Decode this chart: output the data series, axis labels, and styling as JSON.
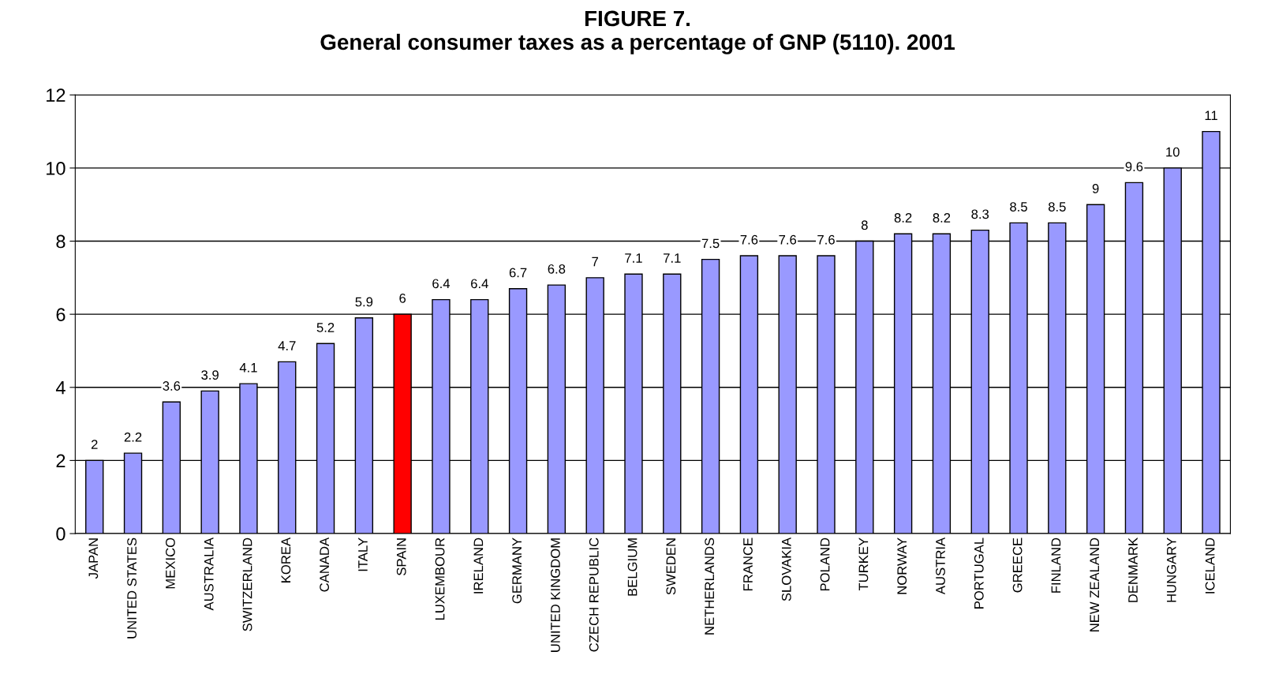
{
  "chart_data": {
    "type": "bar",
    "title": "FIGURE 7.\nGeneral consumer taxes as a percentage of GNP (5110). 2001",
    "categories": [
      "JAPAN",
      "UNITED STATES",
      "MEXICO",
      "AUSTRALIA",
      "SWITZERLAND",
      "KOREA",
      "CANADA",
      "ITALY",
      "SPAIN",
      "LUXEMBOUR",
      "IRELAND",
      "GERMANY",
      "UNITED KINGDOM",
      "CZECH REPUBLIC",
      "BELGIUM",
      "SWEDEN",
      "NETHERLANDS",
      "FRANCE",
      "SLOVAKIA",
      "POLAND",
      "TURKEY",
      "NORWAY",
      "AUSTRIA",
      "PORTUGAL",
      "GREECE",
      "FINLAND",
      "NEW ZEALAND",
      "DENMARK",
      "HUNGARY",
      "ICELAND"
    ],
    "values": [
      2,
      2.2,
      3.6,
      3.9,
      4.1,
      4.7,
      5.2,
      5.9,
      6,
      6.4,
      6.4,
      6.7,
      6.8,
      7,
      7.1,
      7.1,
      7.5,
      7.6,
      7.6,
      7.6,
      8,
      8.2,
      8.2,
      8.3,
      8.5,
      8.5,
      9,
      9.6,
      10,
      11
    ],
    "colors": [
      "#9999ff",
      "#9999ff",
      "#9999ff",
      "#9999ff",
      "#9999ff",
      "#9999ff",
      "#9999ff",
      "#9999ff",
      "#ff0000",
      "#9999ff",
      "#9999ff",
      "#9999ff",
      "#9999ff",
      "#9999ff",
      "#9999ff",
      "#9999ff",
      "#9999ff",
      "#9999ff",
      "#9999ff",
      "#9999ff",
      "#9999ff",
      "#9999ff",
      "#9999ff",
      "#9999ff",
      "#9999ff",
      "#9999ff",
      "#9999ff",
      "#9999ff",
      "#9999ff",
      "#9999ff"
    ],
    "ylim": [
      0,
      12
    ],
    "yticks": [
      0,
      2,
      4,
      6,
      8,
      10,
      12
    ],
    "grid": "y",
    "data_labels": true
  }
}
